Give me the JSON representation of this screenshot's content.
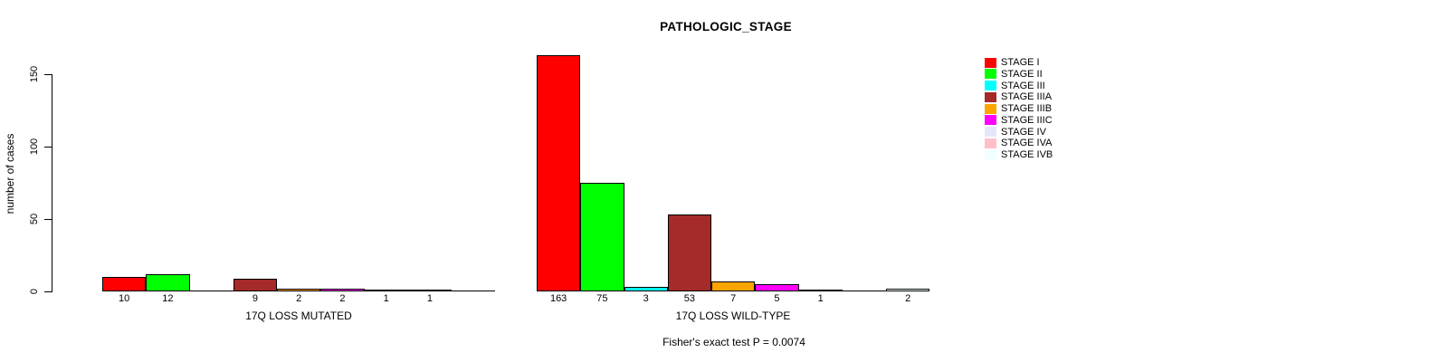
{
  "chart_data": {
    "type": "bar",
    "title": "PATHOLOGIC_STAGE",
    "ylabel": "number of cases",
    "yticks": [
      0,
      50,
      100,
      150
    ],
    "ylim": [
      0,
      165
    ],
    "grid": false,
    "legend_position": "right",
    "categories": [
      "STAGE I",
      "STAGE II",
      "STAGE III",
      "STAGE IIIA",
      "STAGE IIIB",
      "STAGE IIIC",
      "STAGE IV",
      "STAGE IVA",
      "STAGE IVB"
    ],
    "colors": [
      "#FF0000",
      "#00FF00",
      "#00FFFF",
      "#A52A2A",
      "#FFA500",
      "#FF00FF",
      "#E6E6FA",
      "#FFC0CB",
      "#F0FFFF"
    ],
    "groups": [
      {
        "label": "17Q LOSS MUTATED",
        "values": [
          10,
          12,
          0,
          9,
          2,
          2,
          1,
          1,
          0
        ]
      },
      {
        "label": "17Q LOSS WILD-TYPE",
        "values": [
          163,
          75,
          3,
          53,
          7,
          5,
          1,
          0,
          2
        ]
      }
    ],
    "annotation": "Fisher's exact test P = 0.0074"
  }
}
